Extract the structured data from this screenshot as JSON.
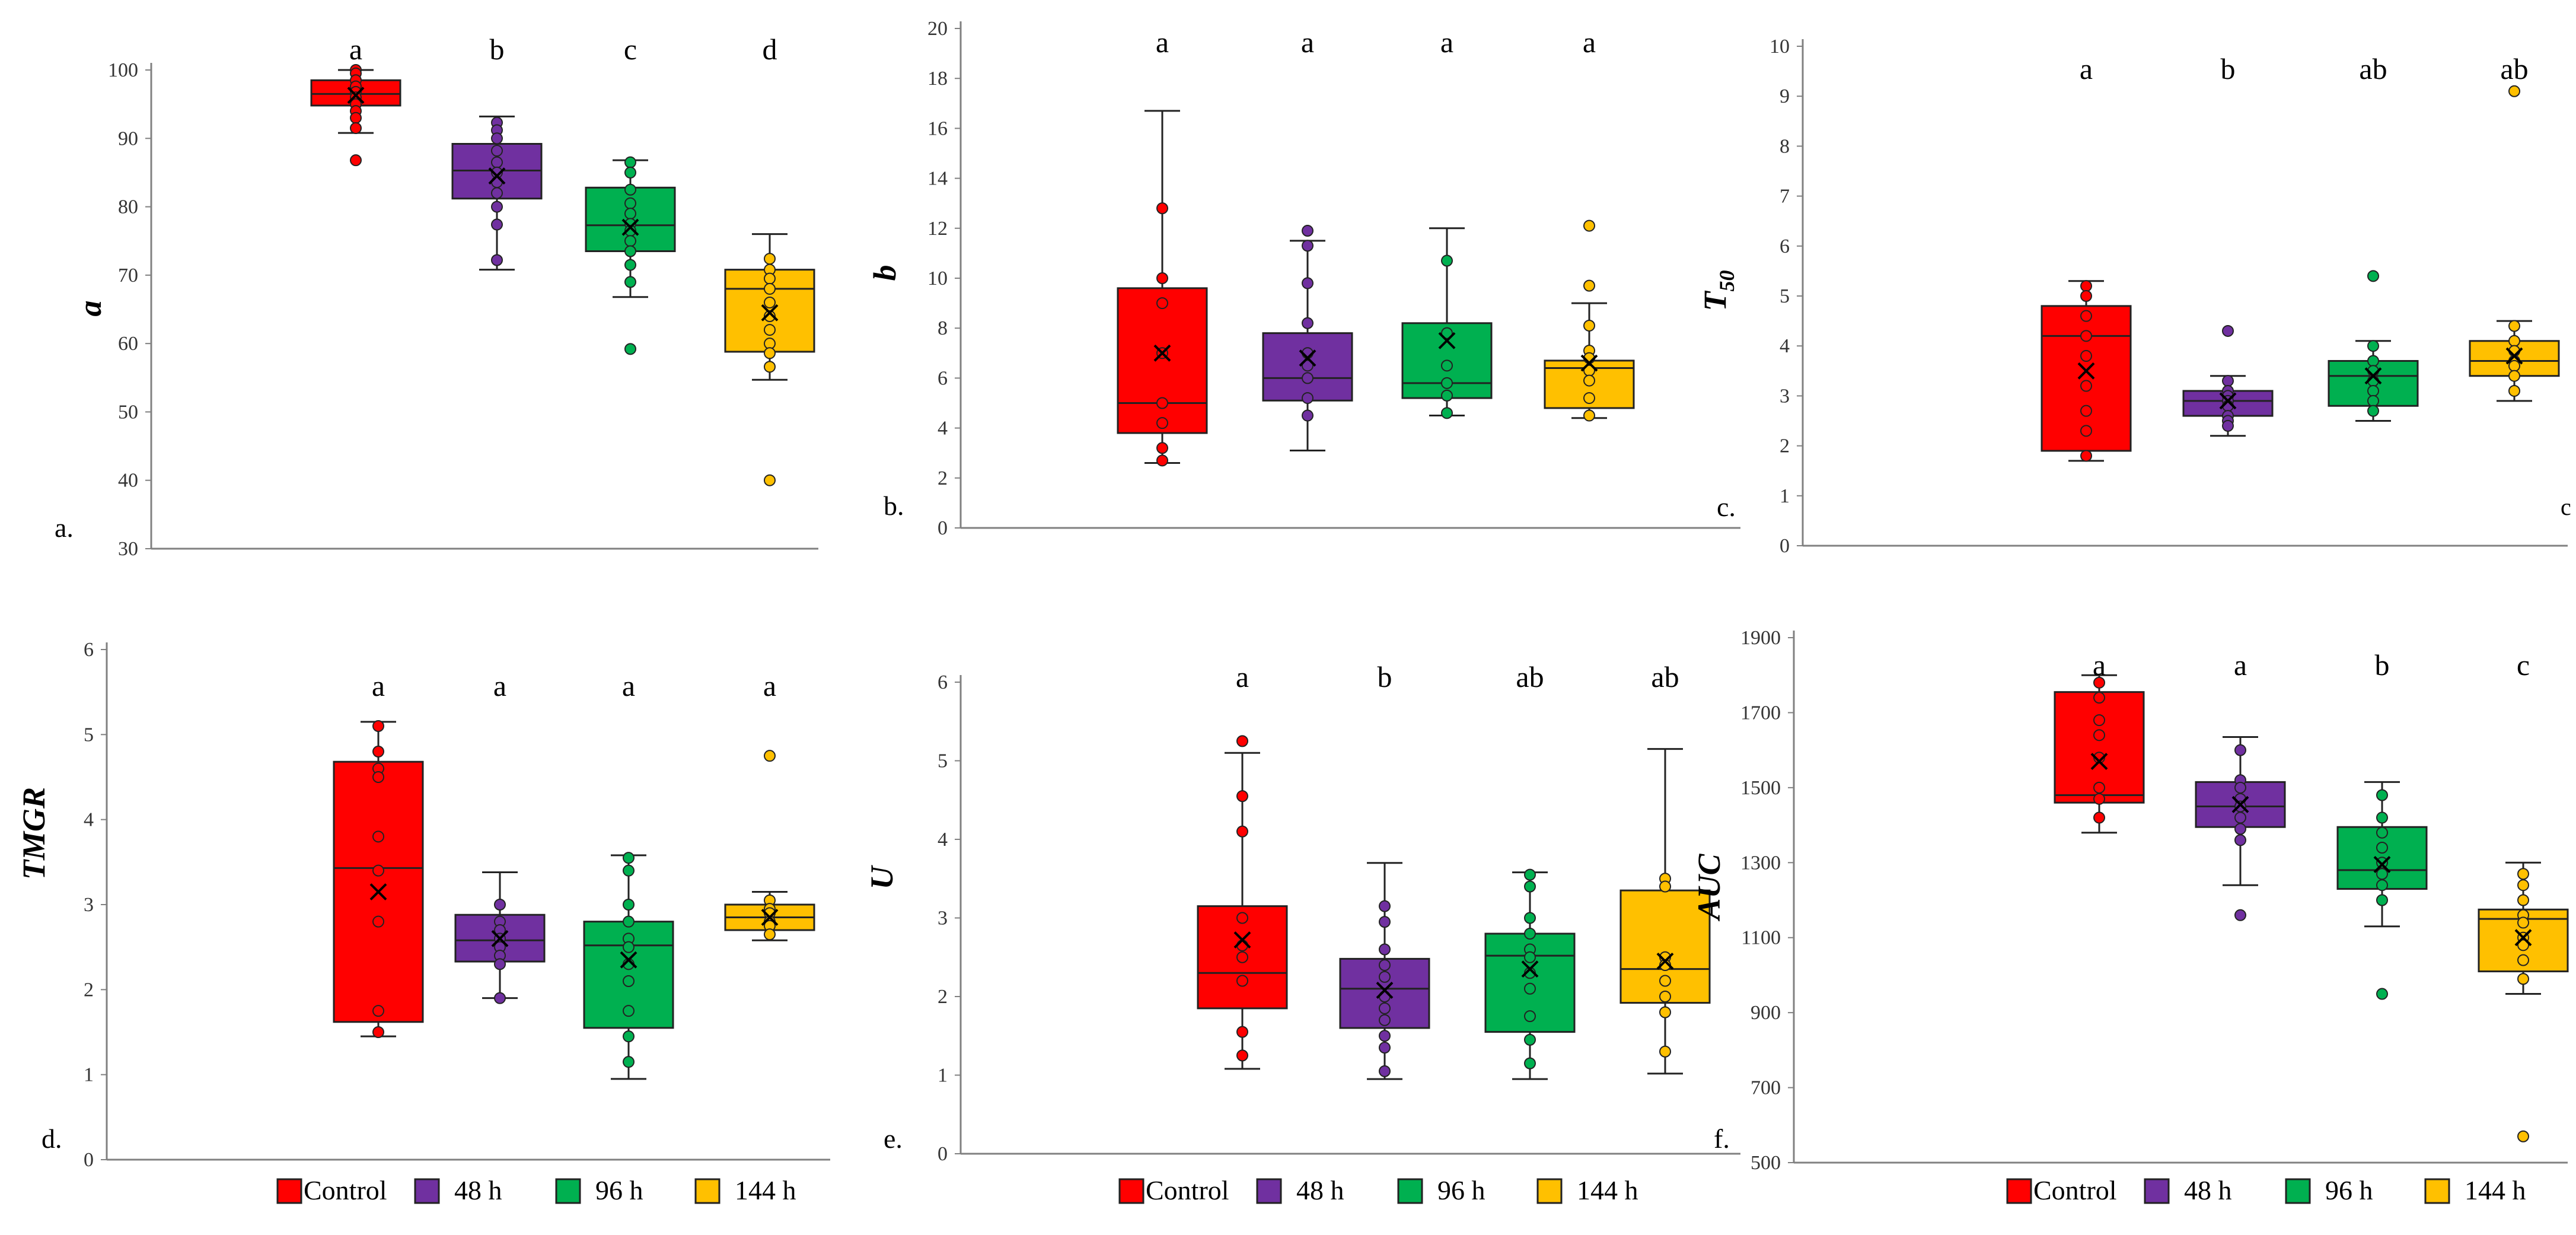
{
  "colors": {
    "control": "#ff0000",
    "h48": "#7030a0",
    "h96": "#00b050",
    "h144": "#ffc000",
    "axis": "#808080",
    "outline": "#222222"
  },
  "legends": [
    {
      "items": [
        {
          "label": "Control",
          "color": "#ff0000"
        },
        {
          "label": "48 h",
          "color": "#7030a0"
        },
        {
          "label": "96 h",
          "color": "#00b050"
        },
        {
          "label": "144 h",
          "color": "#ffc000"
        }
      ]
    },
    {
      "items": [
        {
          "label": "Control",
          "color": "#ff0000"
        },
        {
          "label": "48 h",
          "color": "#7030a0"
        },
        {
          "label": "96 h",
          "color": "#00b050"
        },
        {
          "label": "144 h",
          "color": "#ffc000"
        }
      ]
    },
    {
      "items": [
        {
          "label": "Control",
          "color": "#ff0000"
        },
        {
          "label": "48 h",
          "color": "#7030a0"
        },
        {
          "label": "96 h",
          "color": "#00b050"
        },
        {
          "label": "144 h",
          "color": "#ffc000"
        }
      ]
    }
  ],
  "chart_data": [
    {
      "type": "box",
      "panel_label": "a.",
      "ylabel": "a",
      "ylim": [
        30,
        100
      ],
      "yticks": [
        30,
        40,
        50,
        60,
        70,
        80,
        90,
        100
      ],
      "series": [
        {
          "color": "#ff0000",
          "letter": "a",
          "whisker_low": 90.8,
          "q1": 94.8,
          "median": 96.5,
          "q3": 98.5,
          "whisker_high": 100,
          "mean": 96.3,
          "points": [
            100,
            99.5,
            98.5,
            97.6,
            96.8,
            96,
            95,
            94,
            93,
            91.5,
            86.8
          ]
        },
        {
          "color": "#7030a0",
          "letter": "b",
          "whisker_low": 70.8,
          "q1": 81.2,
          "median": 85.3,
          "q3": 89.2,
          "whisker_high": 93.2,
          "mean": 84.5,
          "points": [
            92.3,
            91.2,
            90,
            88.2,
            86.5,
            85,
            83.6,
            82,
            80,
            77.4,
            72.2
          ]
        },
        {
          "color": "#00b050",
          "letter": "c",
          "whisker_low": 66.8,
          "q1": 73.5,
          "median": 77.3,
          "q3": 82.8,
          "whisker_high": 86.8,
          "mean": 77,
          "points": [
            86.5,
            85,
            82.5,
            80.5,
            79,
            77.5,
            76.5,
            75,
            73.5,
            71.5,
            69,
            59.2
          ]
        },
        {
          "color": "#ffc000",
          "letter": "d",
          "whisker_low": 54.7,
          "q1": 58.8,
          "median": 68,
          "q3": 70.8,
          "whisker_high": 76,
          "mean": 64.5,
          "points": [
            72.4,
            70.8,
            69.5,
            68,
            66,
            64,
            62,
            60,
            58.6,
            56.6,
            40
          ]
        }
      ]
    },
    {
      "type": "box",
      "panel_label": "b.",
      "ylabel": "b",
      "ylim": [
        0,
        20
      ],
      "yticks": [
        0,
        2,
        4,
        6,
        8,
        10,
        12,
        14,
        16,
        18,
        20
      ],
      "series": [
        {
          "color": "#ff0000",
          "letter": "a",
          "whisker_low": 2.6,
          "q1": 3.8,
          "median": 5,
          "q3": 9.6,
          "whisker_high": 16.7,
          "mean": 7,
          "points": [
            12.8,
            10,
            9,
            7,
            5,
            4.2,
            3.2,
            2.7
          ]
        },
        {
          "color": "#7030a0",
          "letter": "a",
          "whisker_low": 3.1,
          "q1": 5.1,
          "median": 6,
          "q3": 7.8,
          "whisker_high": 11.5,
          "mean": 6.8,
          "points": [
            11.9,
            11.3,
            9.8,
            8.2,
            7,
            6.5,
            6,
            5.2,
            4.5
          ]
        },
        {
          "color": "#00b050",
          "letter": "a",
          "whisker_low": 4.5,
          "q1": 5.2,
          "median": 5.8,
          "q3": 8.2,
          "whisker_high": 12,
          "mean": 7.5,
          "points": [
            10.7,
            7.8,
            6.5,
            5.8,
            5.3,
            4.6
          ]
        },
        {
          "color": "#ffc000",
          "letter": "a",
          "whisker_low": 4.4,
          "q1": 4.8,
          "median": 6.4,
          "q3": 6.7,
          "whisker_high": 9,
          "mean": 6.6,
          "points": [
            12.1,
            9.7,
            8.1,
            7.1,
            6.8,
            6.3,
            5.9,
            5.2,
            4.5
          ]
        }
      ]
    },
    {
      "type": "box",
      "panel_label": "c.",
      "corner_note": "c",
      "ylabel": "T50",
      "ylabel_main": "T",
      "ylabel_sub": "50",
      "ylim": [
        0,
        10
      ],
      "yticks": [
        0,
        1,
        2,
        3,
        4,
        5,
        6,
        7,
        8,
        9,
        10
      ],
      "series": [
        {
          "color": "#ff0000",
          "letter": "a",
          "whisker_low": 1.7,
          "q1": 1.9,
          "median": 4.2,
          "q3": 4.8,
          "whisker_high": 5.3,
          "mean": 3.5,
          "points": [
            5.2,
            5,
            4.6,
            4.2,
            3.8,
            3.2,
            2.7,
            2.3,
            1.8
          ]
        },
        {
          "color": "#7030a0",
          "letter": "b",
          "whisker_low": 2.2,
          "q1": 2.6,
          "median": 2.9,
          "q3": 3.1,
          "whisker_high": 3.4,
          "mean": 2.9,
          "points": [
            4.3,
            3.3,
            3.1,
            3,
            2.9,
            2.8,
            2.6,
            2.5,
            2.4
          ]
        },
        {
          "color": "#00b050",
          "letter": "ab",
          "whisker_low": 2.5,
          "q1": 2.8,
          "median": 3.4,
          "q3": 3.7,
          "whisker_high": 4.1,
          "mean": 3.4,
          "points": [
            5.4,
            4,
            3.7,
            3.5,
            3.3,
            3.1,
            2.9,
            2.7
          ]
        },
        {
          "color": "#ffc000",
          "letter": "ab",
          "whisker_low": 2.9,
          "q1": 3.4,
          "median": 3.7,
          "q3": 4.1,
          "whisker_high": 4.5,
          "mean": 3.8,
          "points": [
            9.1,
            4.4,
            4.1,
            3.9,
            3.7,
            3.6,
            3.4,
            3.1
          ]
        }
      ]
    },
    {
      "type": "box",
      "panel_label": "d.",
      "ylabel": "TMGR",
      "ylim": [
        0,
        6
      ],
      "yticks": [
        0,
        1,
        2,
        3,
        4,
        5,
        6
      ],
      "series": [
        {
          "color": "#ff0000",
          "letter": "a",
          "whisker_low": 1.45,
          "q1": 1.62,
          "median": 3.43,
          "q3": 4.68,
          "whisker_high": 5.15,
          "mean": 3.15,
          "points": [
            5.1,
            4.8,
            4.6,
            4.5,
            3.8,
            3.4,
            2.8,
            1.75,
            1.5
          ]
        },
        {
          "color": "#7030a0",
          "letter": "a",
          "whisker_low": 1.9,
          "q1": 2.33,
          "median": 2.58,
          "q3": 2.88,
          "whisker_high": 3.38,
          "mean": 2.6,
          "points": [
            3,
            2.8,
            2.7,
            2.6,
            2.5,
            2.4,
            2.3,
            1.9
          ]
        },
        {
          "color": "#00b050",
          "letter": "a",
          "whisker_low": 0.95,
          "q1": 1.55,
          "median": 2.52,
          "q3": 2.8,
          "whisker_high": 3.58,
          "mean": 2.35,
          "points": [
            3.55,
            3.4,
            3,
            2.8,
            2.6,
            2.5,
            2.3,
            2.1,
            1.75,
            1.45,
            1.15
          ]
        },
        {
          "color": "#ffc000",
          "letter": "a",
          "whisker_low": 2.58,
          "q1": 2.7,
          "median": 2.85,
          "q3": 3,
          "whisker_high": 3.15,
          "mean": 2.85,
          "points": [
            4.75,
            3.05,
            2.95,
            2.9,
            2.8,
            2.75,
            2.65
          ]
        }
      ]
    },
    {
      "type": "box",
      "panel_label": "e.",
      "ylabel": "U",
      "ylim": [
        0,
        6
      ],
      "yticks": [
        0,
        1,
        2,
        3,
        4,
        5,
        6
      ],
      "series": [
        {
          "color": "#ff0000",
          "letter": "a",
          "whisker_low": 1.08,
          "q1": 1.85,
          "median": 2.3,
          "q3": 3.15,
          "whisker_high": 5.1,
          "mean": 2.72,
          "points": [
            5.25,
            4.55,
            4.1,
            3,
            2.65,
            2.5,
            2.2,
            1.55,
            1.25
          ]
        },
        {
          "color": "#7030a0",
          "letter": "b",
          "whisker_low": 0.95,
          "q1": 1.6,
          "median": 2.1,
          "q3": 2.48,
          "whisker_high": 3.7,
          "mean": 2.08,
          "points": [
            3.15,
            2.95,
            2.6,
            2.4,
            2.25,
            2,
            1.85,
            1.7,
            1.5,
            1.35,
            1.05
          ]
        },
        {
          "color": "#00b050",
          "letter": "ab",
          "whisker_low": 0.95,
          "q1": 1.55,
          "median": 2.52,
          "q3": 2.8,
          "whisker_high": 3.58,
          "mean": 2.35,
          "points": [
            3.55,
            3.4,
            3,
            2.8,
            2.6,
            2.5,
            2.3,
            2.1,
            1.75,
            1.45,
            1.15
          ]
        },
        {
          "color": "#ffc000",
          "letter": "ab",
          "whisker_low": 1.02,
          "q1": 1.92,
          "median": 2.35,
          "q3": 3.35,
          "whisker_high": 5.15,
          "mean": 2.45,
          "points": [
            3.5,
            3.4,
            2.5,
            2.4,
            2.2,
            2,
            1.8,
            1.3
          ]
        }
      ]
    },
    {
      "type": "box",
      "panel_label": "f.",
      "ylabel": "AUC",
      "ylim": [
        500,
        1900
      ],
      "yticks": [
        500,
        700,
        900,
        1100,
        1300,
        1500,
        1700,
        1900
      ],
      "series": [
        {
          "color": "#ff0000",
          "letter": "a",
          "whisker_low": 1380,
          "q1": 1460,
          "median": 1480,
          "q3": 1755,
          "whisker_high": 1800,
          "mean": 1570,
          "points": [
            1780,
            1740,
            1680,
            1640,
            1580,
            1500,
            1470,
            1420
          ]
        },
        {
          "color": "#7030a0",
          "letter": "a",
          "whisker_low": 1240,
          "q1": 1395,
          "median": 1450,
          "q3": 1515,
          "whisker_high": 1635,
          "mean": 1455,
          "points": [
            1600,
            1520,
            1500,
            1470,
            1450,
            1420,
            1390,
            1360,
            1160
          ]
        },
        {
          "color": "#00b050",
          "letter": "b",
          "whisker_low": 1130,
          "q1": 1230,
          "median": 1280,
          "q3": 1395,
          "whisker_high": 1515,
          "mean": 1295,
          "points": [
            1480,
            1420,
            1380,
            1340,
            1300,
            1270,
            1240,
            1200,
            950
          ]
        },
        {
          "color": "#ffc000",
          "letter": "c",
          "whisker_low": 950,
          "q1": 1010,
          "median": 1150,
          "q3": 1175,
          "whisker_high": 1300,
          "mean": 1100,
          "points": [
            1270,
            1240,
            1200,
            1160,
            1140,
            1100,
            1080,
            1040,
            990,
            570
          ]
        }
      ]
    }
  ]
}
